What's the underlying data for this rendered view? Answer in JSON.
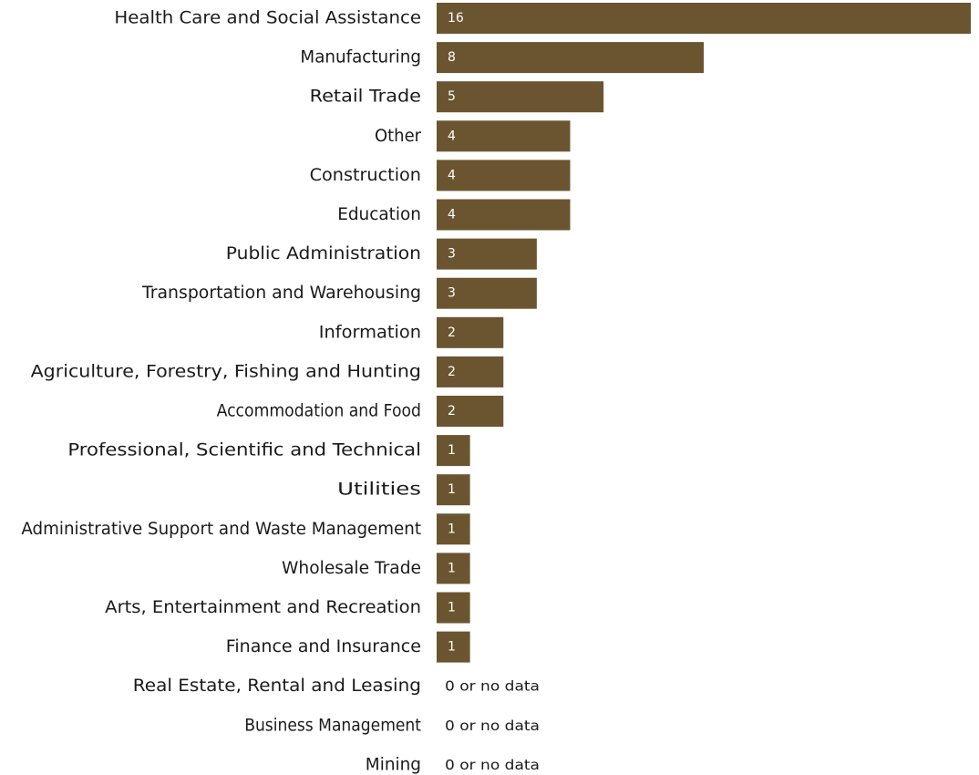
{
  "chart_data": {
    "type": "bar",
    "orientation": "horizontal",
    "title": "",
    "xlabel": "",
    "ylabel": "",
    "xlim": [
      0,
      16
    ],
    "grid": false,
    "legend": "none",
    "bar_color": "#6b5530",
    "value_label_color": "#ffffff",
    "no_data_text": "0 or no data",
    "categories": [
      "Health Care and Social Assistance",
      "Manufacturing",
      "Retail Trade",
      "Other",
      "Construction",
      "Education",
      "Public Administration",
      "Transportation and Warehousing",
      "Information",
      "Agriculture, Forestry, Fishing and Hunting",
      "Accommodation and Food",
      "Professional, Scientific and Technical",
      "Utilities",
      "Administrative Support and Waste Management",
      "Wholesale Trade",
      "Arts, Entertainment and Recreation",
      "Finance and Insurance",
      "Real Estate, Rental and Leasing",
      "Business Management",
      "Mining"
    ],
    "values": [
      16,
      8,
      5,
      4,
      4,
      4,
      3,
      3,
      2,
      2,
      2,
      1,
      1,
      1,
      1,
      1,
      1,
      0,
      0,
      0
    ]
  }
}
